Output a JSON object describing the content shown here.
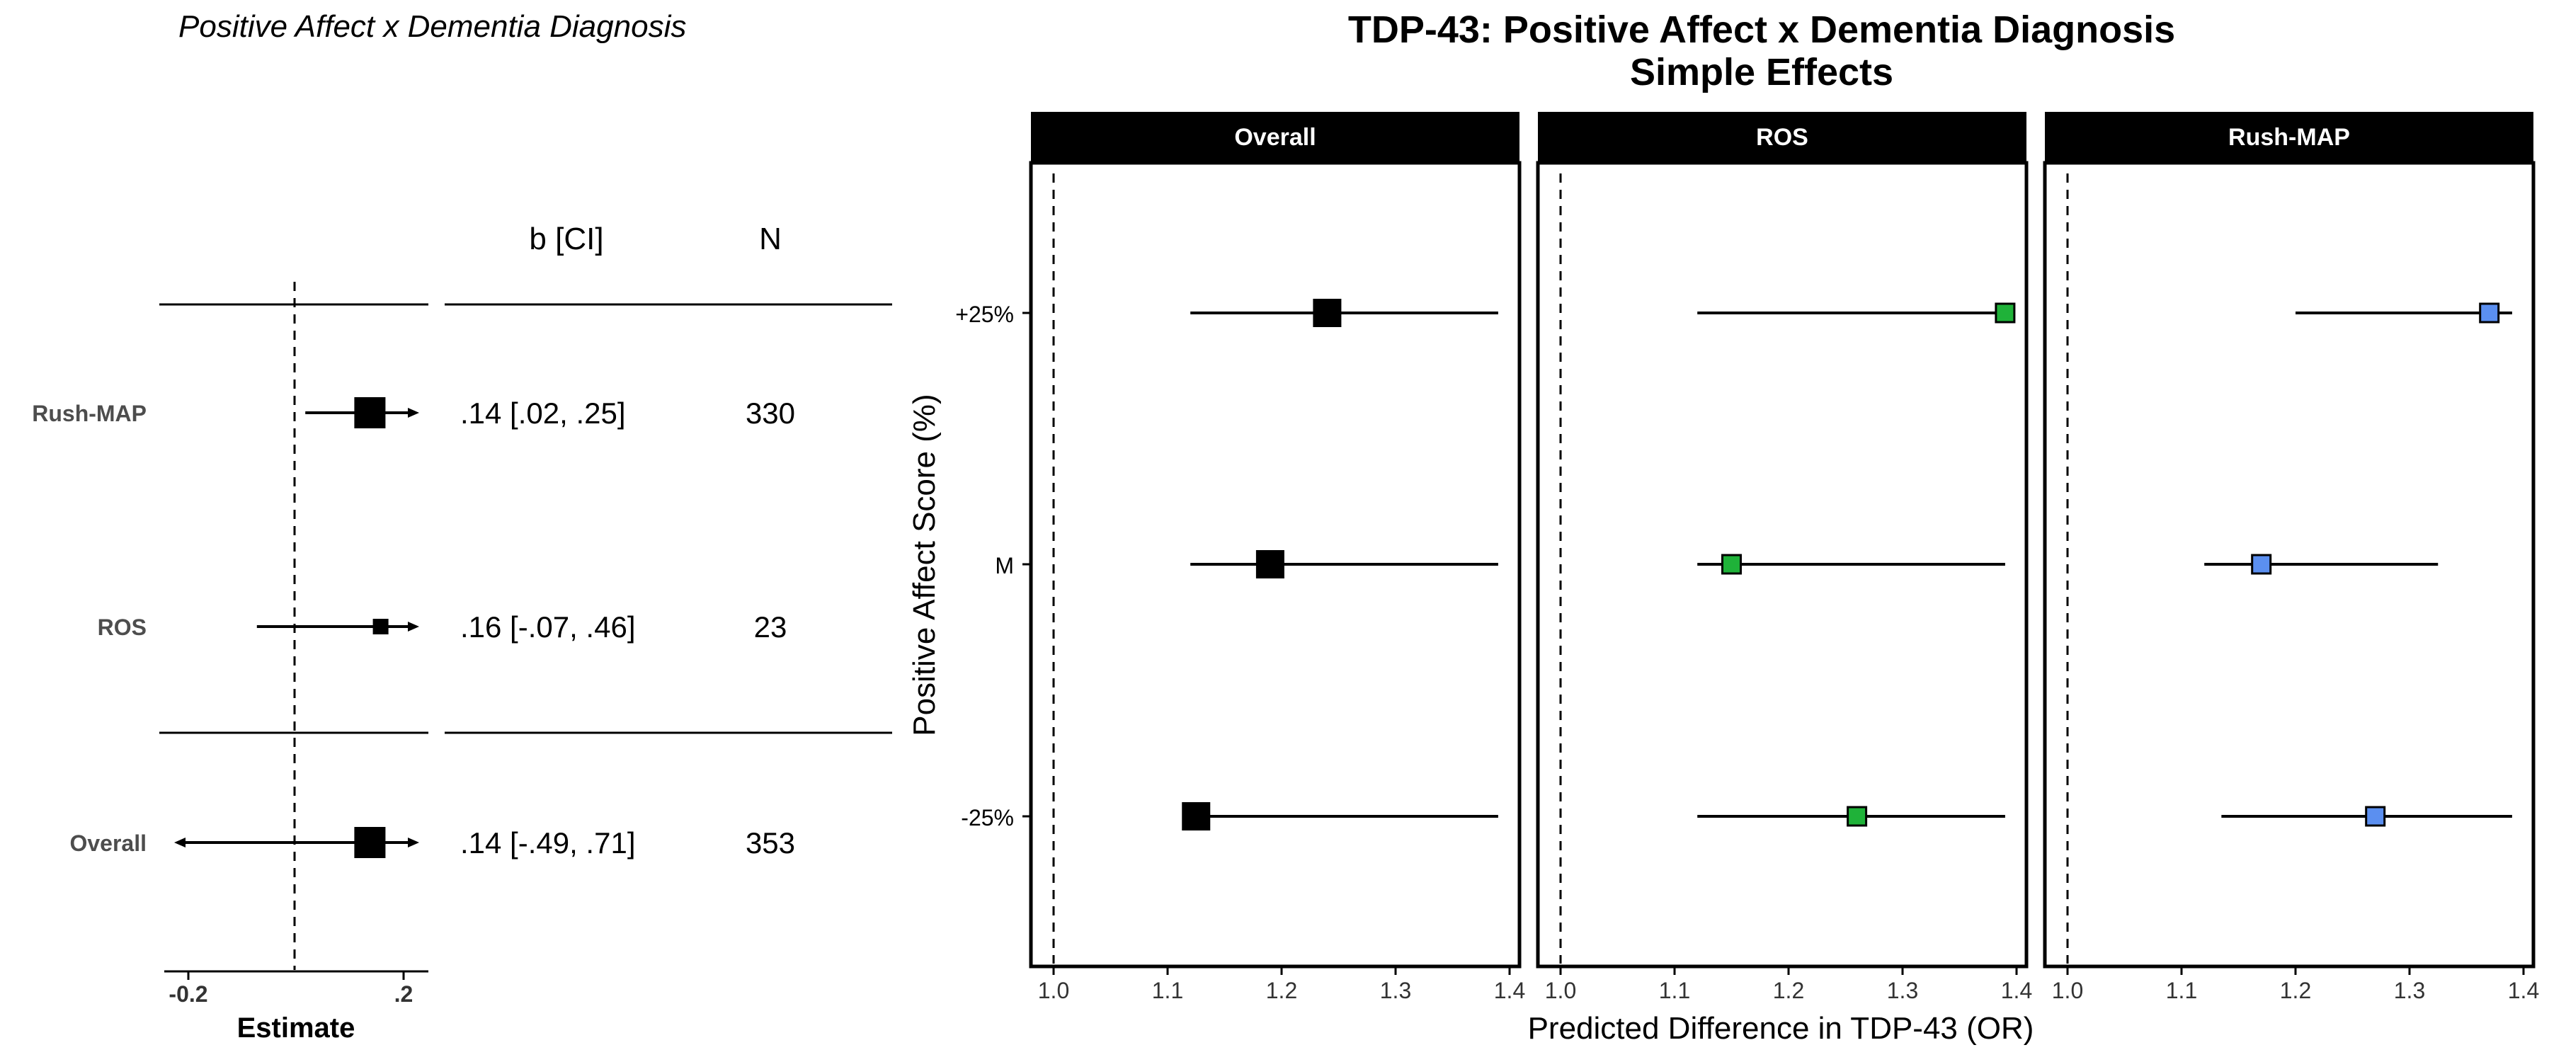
{
  "colors": {
    "black": "#000000",
    "ros_green": "#1fb239",
    "rushmap_blue": "#5b8ff0",
    "strip_bg": "#000000",
    "strip_text": "#ffffff",
    "row_label_grey": "#4d4d4d"
  },
  "chart_data": [
    {
      "type": "forest",
      "title": "Positive Affect x Dementia Diagnosis",
      "xlabel": "Estimate",
      "x_ticks": [
        "-0.2",
        ".2"
      ],
      "x_tick_values": [
        -0.2,
        0.2
      ],
      "xlim": [
        -0.25,
        0.25
      ],
      "reference_line": 0,
      "column_headers": {
        "ci": "b [CI]",
        "n": "N"
      },
      "rows": [
        {
          "label": "Rush-MAP",
          "estimate": 0.14,
          "ci_low": 0.02,
          "ci_high": 0.25,
          "ci_text": ".14 [.02, .25]",
          "n": "330",
          "marker": "large",
          "clipped_high": true,
          "clipped_low": false
        },
        {
          "label": "ROS",
          "estimate": 0.16,
          "ci_low": -0.07,
          "ci_high": 0.46,
          "ci_text": ".16 [-.07, .46]",
          "n": "23",
          "marker": "small",
          "clipped_high": true,
          "clipped_low": false
        },
        {
          "label": "Overall",
          "estimate": 0.14,
          "ci_low": -0.49,
          "ci_high": 0.71,
          "ci_text": ".14 [-.49, .71]",
          "n": "353",
          "marker": "large",
          "clipped_high": true,
          "clipped_low": true
        }
      ]
    },
    {
      "type": "scatter",
      "title": "TDP-43: Positive Affect x Dementia Diagnosis",
      "subtitle": "Simple Effects",
      "xlabel": "Predicted Difference in TDP-43 (OR)",
      "ylabel": "Positive Affect Score (%)",
      "xlim": [
        0.98,
        1.41
      ],
      "x_ticks": [
        "1.0",
        "1.1",
        "1.2",
        "1.3",
        "1.4"
      ],
      "x_tick_values": [
        1.0,
        1.1,
        1.2,
        1.3,
        1.4
      ],
      "y_categories": [
        "+25%",
        "M",
        "-25%"
      ],
      "reference_line": 1.0,
      "facets": [
        {
          "name": "Overall",
          "color": "#000000",
          "marker": "large",
          "points": [
            {
              "y": "+25%",
              "x": 1.24,
              "ci_low": 1.12,
              "ci_high": 1.39
            },
            {
              "y": "M",
              "x": 1.19,
              "ci_low": 1.12,
              "ci_high": 1.39
            },
            {
              "y": "-25%",
              "x": 1.125,
              "ci_low": 1.12,
              "ci_high": 1.39
            }
          ]
        },
        {
          "name": "ROS",
          "color": "#1fb239",
          "marker": "small",
          "points": [
            {
              "y": "+25%",
              "x": 1.39,
              "ci_low": 1.12,
              "ci_high": 1.39
            },
            {
              "y": "M",
              "x": 1.15,
              "ci_low": 1.12,
              "ci_high": 1.39
            },
            {
              "y": "-25%",
              "x": 1.26,
              "ci_low": 1.12,
              "ci_high": 1.39
            }
          ]
        },
        {
          "name": "Rush-MAP",
          "color": "#5b8ff0",
          "marker": "small",
          "points": [
            {
              "y": "+25%",
              "x": 1.37,
              "ci_low": 1.2,
              "ci_high": 1.39
            },
            {
              "y": "M",
              "x": 1.17,
              "ci_low": 1.12,
              "ci_high": 1.325
            },
            {
              "y": "-25%",
              "x": 1.27,
              "ci_low": 1.135,
              "ci_high": 1.39
            }
          ]
        }
      ]
    }
  ]
}
